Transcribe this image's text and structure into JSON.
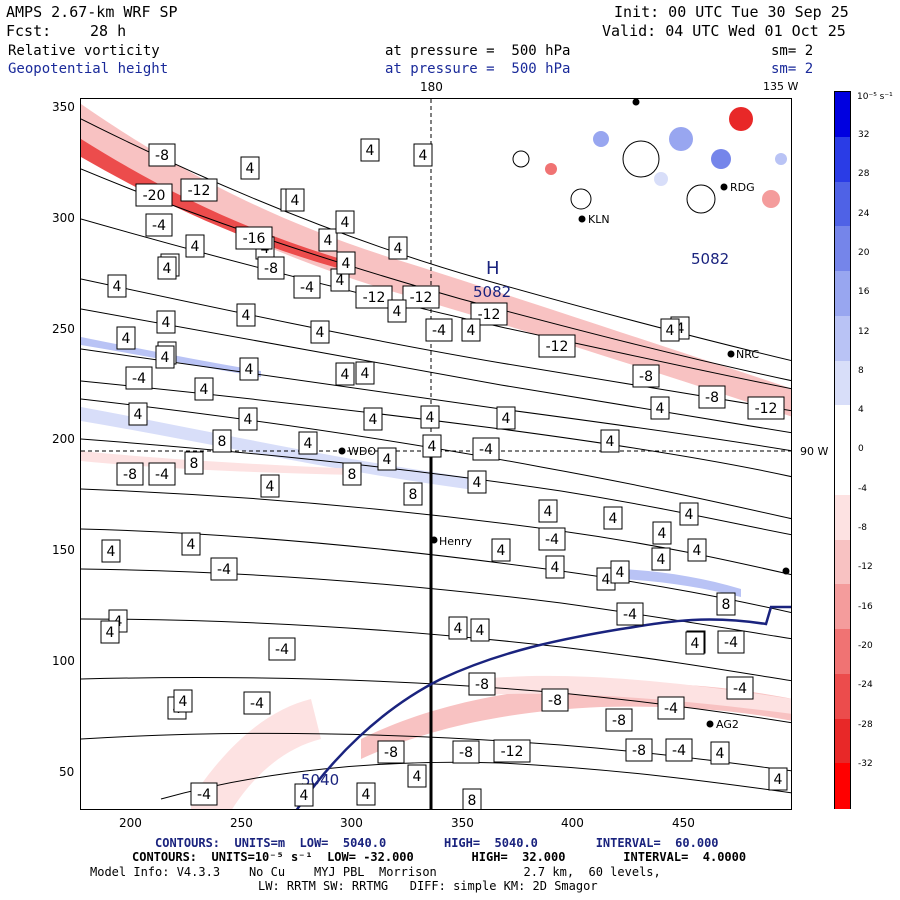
{
  "header": {
    "title": "AMPS 2.67-km WRF SP",
    "init": "Init: 00 UTC Tue 30 Sep 25",
    "fcst_label": "Fcst:",
    "fcst_value": "28 h",
    "valid": "Valid: 04 UTC Wed 01 Oct 25",
    "field1": "Relative vorticity",
    "field1_pressure": "at pressure =  500 hPa",
    "field1_sm": "sm= 2",
    "field2": "Geopotential height",
    "field2_pressure": "at pressure =  500 hPa",
    "field2_sm": "sm= 2"
  },
  "map_labels": {
    "lon_180": "180",
    "lon_135w": "135 W",
    "lat_90w": "90 W",
    "high_letter": "H",
    "high_value": "5082",
    "high_value2": "5082",
    "contour_5040": "5040"
  },
  "stations": [
    {
      "name": "RDG"
    },
    {
      "name": "KLN"
    },
    {
      "name": "NRC"
    },
    {
      "name": "WDO"
    },
    {
      "name": "Henry"
    },
    {
      "name": "AG2"
    }
  ],
  "x_ticks": [
    "200",
    "250",
    "300",
    "350",
    "400",
    "450"
  ],
  "y_ticks": [
    "350",
    "300",
    "250",
    "200",
    "150",
    "100",
    "50"
  ],
  "colorbar": {
    "unit": "10⁻⁵ s⁻¹",
    "labels": [
      "32",
      "28",
      "24",
      "20",
      "16",
      "12",
      "8",
      "4",
      "0",
      "-4",
      "-8",
      "-12",
      "-16",
      "-20",
      "-24",
      "-28",
      "-32"
    ],
    "colors": [
      "#0000e0",
      "#2a3ce6",
      "#4f62e6",
      "#7585ea",
      "#98a6f0",
      "#b9c3f5",
      "#d8def9",
      "#ffffff",
      "#ffffff",
      "#fde2e2",
      "#f8c2c2",
      "#f49c9c",
      "#f07373",
      "#ec4c4c",
      "#e82828",
      "#ff0000"
    ]
  },
  "contour_labels": [
    "-8",
    "4",
    "4",
    "4",
    "-20",
    "-12",
    "4",
    "4",
    "-4",
    "4",
    "4",
    "-16",
    "4",
    "4",
    "4",
    "-8",
    "4",
    "-4",
    "4",
    "4",
    "-12",
    "-12",
    "4",
    "-12",
    "4",
    "4",
    "4",
    "4",
    "-4",
    "4",
    "-12",
    "4",
    "4",
    "4",
    "4",
    "-4",
    "4",
    "-8",
    "4",
    "4",
    "4",
    "-8",
    "4",
    "-12",
    "4",
    "4",
    "8",
    "4",
    "4",
    "4",
    "4",
    "-4",
    "4",
    "4",
    "4",
    "4",
    "-8",
    "-4",
    "8",
    "8",
    "8",
    "4",
    "4",
    "4",
    "4",
    "-4",
    "4",
    "4",
    "4",
    "4",
    "4",
    "4",
    "4",
    "-4",
    "4",
    "4",
    "4",
    "4",
    "8",
    "4",
    "4",
    "-4",
    "4",
    "4",
    "-4",
    "4",
    "-4",
    "-8",
    "-8",
    "-12",
    "-8",
    "-4",
    "-4",
    "-8",
    "-4",
    "4",
    "-8",
    "-8",
    "4",
    "-4",
    "-4",
    "4",
    "4",
    "4",
    "8",
    "4",
    "4",
    "4"
  ],
  "footer": {
    "line1": "CONTOURS:  UNITS=m  LOW=  5040.0        HIGH=  5040.0        INTERVAL=  60.000",
    "line2": "CONTOURS:  UNITS=10⁻⁵ s⁻¹  LOW= -32.000        HIGH=  32.000        INTERVAL=  4.0000",
    "line3": "Model Info: V4.3.3    No Cu    MYJ PBL  Morrison            2.7 km,  60 levels,",
    "line4": "LW: RRTM SW: RRTMG   DIFF: simple KM: 2D Smagor"
  }
}
